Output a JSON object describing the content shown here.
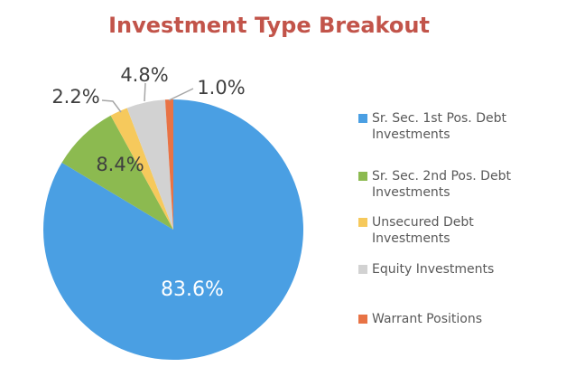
{
  "chart_data": {
    "type": "pie",
    "title": "Investment Type Breakout",
    "categories": [
      "Sr. Sec. 1st Pos. Debt Investments",
      "Sr. Sec. 2nd Pos. Debt Investments",
      "Unsecured Debt Investments",
      "Equity Investments",
      "Warrant Positions"
    ],
    "values": [
      83.6,
      8.4,
      2.2,
      4.8,
      1.0
    ],
    "data_labels": [
      "83.6%",
      "8.4%",
      "2.2%",
      "4.8%",
      "1.0%"
    ],
    "colors": [
      "#4A9FE3",
      "#8CBA50",
      "#F6C95C",
      "#D2D2D2",
      "#E87345"
    ],
    "legend_position": "right",
    "start_angle_deg": 0,
    "direction": "clockwise",
    "title_color": "#C2544A",
    "label_color": "#3F3F3F",
    "inside_big_label_color": "#FFFFFF",
    "legend_text_color": "#595959",
    "leader_line_color": "#A6A6A6",
    "background_color": "#FFFFFF"
  }
}
